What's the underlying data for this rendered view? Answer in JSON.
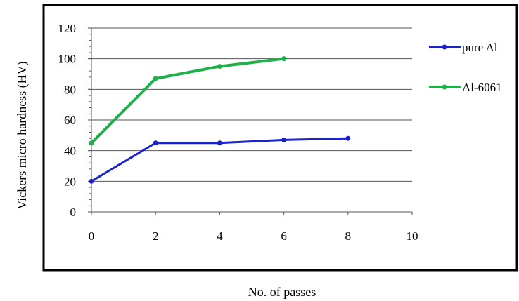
{
  "chart_data": {
    "type": "line",
    "title": "",
    "xlabel": "No. of passes",
    "ylabel": "Vickers micro hardness (HV)",
    "xlim": [
      0,
      10
    ],
    "ylim": [
      0,
      120
    ],
    "x_ticks": [
      0,
      2,
      4,
      6,
      8,
      10
    ],
    "y_ticks": [
      0,
      20,
      40,
      60,
      80,
      100,
      120
    ],
    "grid": "horizontal",
    "legend_position": "right",
    "series": [
      {
        "name": "pure Al",
        "color": "#1a22c8",
        "x": [
          0,
          2,
          4,
          6,
          8
        ],
        "y": [
          20,
          45,
          45,
          47,
          48
        ]
      },
      {
        "name": "Al-6061",
        "color": "#1fb04a",
        "x": [
          0,
          2,
          4,
          6
        ],
        "y": [
          45,
          87,
          95,
          100
        ]
      }
    ]
  }
}
